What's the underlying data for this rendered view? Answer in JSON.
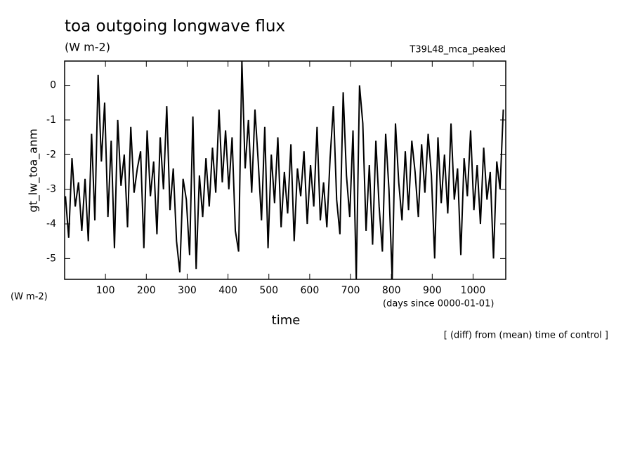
{
  "chart_data": {
    "type": "line",
    "title": "toa outgoing longwave flux",
    "subtitle": "(W m-2)",
    "run_label": "T39L48_mca_peaked",
    "ylabel": "gt_lw_toa_anm",
    "y_units": "(W m-2)",
    "xlabel": "time",
    "x_units": "(days since 0000-01-01)",
    "note": "[ (diff) from (mean) time of control ]",
    "color": "#000000",
    "xlim": [
      0,
      1080
    ],
    "xticks": [
      100,
      200,
      300,
      400,
      500,
      600,
      700,
      800,
      900,
      1000
    ],
    "ylim": [
      -5.6,
      0.7
    ],
    "yticks": [
      -5,
      -4,
      -3,
      -2,
      -1,
      0
    ],
    "x": [
      2,
      10,
      18,
      26,
      34,
      42,
      50,
      58,
      66,
      74,
      82,
      90,
      98,
      106,
      114,
      122,
      130,
      138,
      146,
      154,
      162,
      170,
      178,
      186,
      194,
      202,
      210,
      218,
      226,
      234,
      242,
      250,
      258,
      266,
      274,
      282,
      290,
      298,
      306,
      314,
      322,
      330,
      338,
      346,
      354,
      362,
      370,
      378,
      386,
      394,
      402,
      410,
      418,
      426,
      434,
      442,
      450,
      458,
      466,
      474,
      482,
      490,
      498,
      506,
      514,
      522,
      530,
      538,
      546,
      554,
      562,
      570,
      578,
      586,
      594,
      602,
      610,
      618,
      626,
      634,
      642,
      650,
      658,
      666,
      674,
      682,
      690,
      698,
      706,
      714,
      722,
      730,
      738,
      746,
      754,
      762,
      770,
      778,
      786,
      794,
      802,
      810,
      818,
      826,
      834,
      842,
      850,
      858,
      866,
      874,
      882,
      890,
      898,
      906,
      914,
      922,
      930,
      938,
      946,
      954,
      962,
      970,
      978,
      986,
      994,
      1002,
      1010,
      1018,
      1026,
      1034,
      1042,
      1050,
      1058,
      1066,
      1074
    ],
    "values": [
      -3.2,
      -4.4,
      -2.1,
      -3.5,
      -2.8,
      -4.2,
      -2.7,
      -4.5,
      -1.4,
      -3.9,
      0.3,
      -2.2,
      -0.5,
      -3.8,
      -1.6,
      -4.7,
      -1.0,
      -2.9,
      -2.0,
      -4.1,
      -1.2,
      -3.1,
      -2.4,
      -1.9,
      -4.7,
      -1.3,
      -3.2,
      -2.2,
      -4.3,
      -1.5,
      -3.0,
      -0.6,
      -3.6,
      -2.4,
      -4.5,
      -5.4,
      -2.7,
      -3.3,
      -4.9,
      -0.9,
      -5.3,
      -2.6,
      -3.8,
      -2.1,
      -3.5,
      -1.8,
      -3.1,
      -0.7,
      -2.8,
      -1.3,
      -3.0,
      -1.5,
      -4.2,
      -4.8,
      0.7,
      -2.4,
      -1.0,
      -3.1,
      -0.7,
      -2.2,
      -3.9,
      -1.2,
      -4.7,
      -2.0,
      -3.4,
      -1.5,
      -4.1,
      -2.5,
      -3.7,
      -1.7,
      -4.5,
      -2.4,
      -3.2,
      -1.9,
      -4.0,
      -2.3,
      -3.5,
      -1.2,
      -3.9,
      -2.8,
      -4.1,
      -2.1,
      -0.6,
      -3.3,
      -4.3,
      -0.2,
      -2.6,
      -3.8,
      -1.3,
      -5.6,
      0.0,
      -1.1,
      -4.2,
      -2.3,
      -4.6,
      -1.6,
      -3.5,
      -4.8,
      -1.4,
      -3.0,
      -5.6,
      -1.1,
      -2.8,
      -3.9,
      -1.9,
      -3.6,
      -1.6,
      -2.5,
      -3.8,
      -1.7,
      -3.1,
      -1.4,
      -2.6,
      -5.0,
      -1.5,
      -3.4,
      -2.0,
      -3.7,
      -1.1,
      -3.3,
      -2.4,
      -4.9,
      -2.1,
      -3.2,
      -1.3,
      -3.6,
      -2.3,
      -4.0,
      -1.8,
      -3.3,
      -2.5,
      -5.0,
      -2.2,
      -3.0,
      -0.7
    ]
  }
}
